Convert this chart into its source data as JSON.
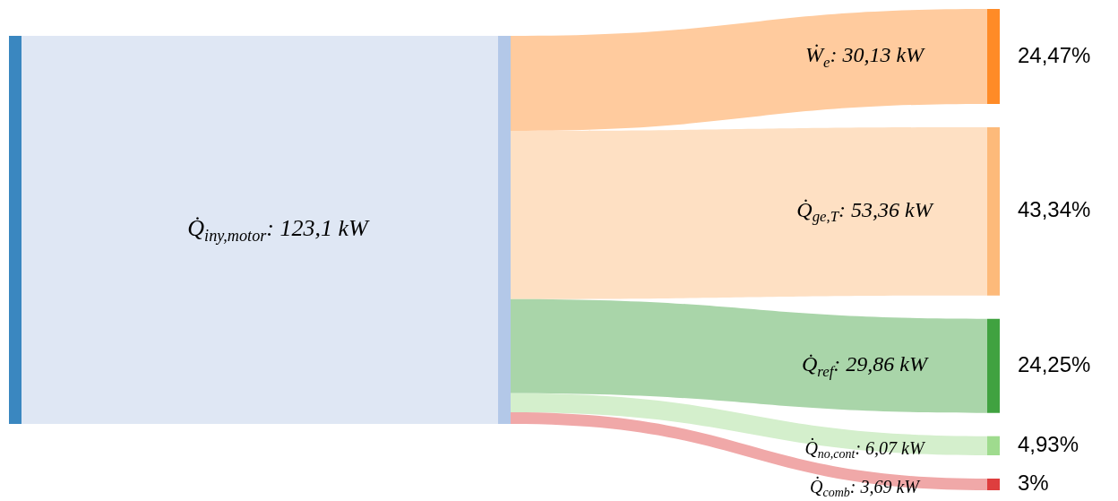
{
  "chart_data": {
    "type": "other",
    "annotations": [
      "Q̇$_{iny,motor}$: 123,1 kW"
    ],
    "categories": [
      "Ẇ$_{e}$: 30,13 kW",
      "Q̇$_{ge,T}$: 53,36 kW",
      "Q̇$_{ref}$: 29,86 kW",
      "Q̇$_{no,cont}$: 6,07 kW",
      "Q̇$_{comb}$: 3,69 kW"
    ],
    "values": [
      24.47,
      43.34,
      24.25,
      4.93,
      3
    ],
    "value_labels": [
      "24,47%",
      "43,34%",
      "24,25%",
      "4,93%",
      "3%"
    ],
    "colors": [
      "#ffcb9e",
      "#fee0c3",
      "#a9d5a9",
      "#d4efcc",
      "#f0a8a8"
    ]
  }
}
